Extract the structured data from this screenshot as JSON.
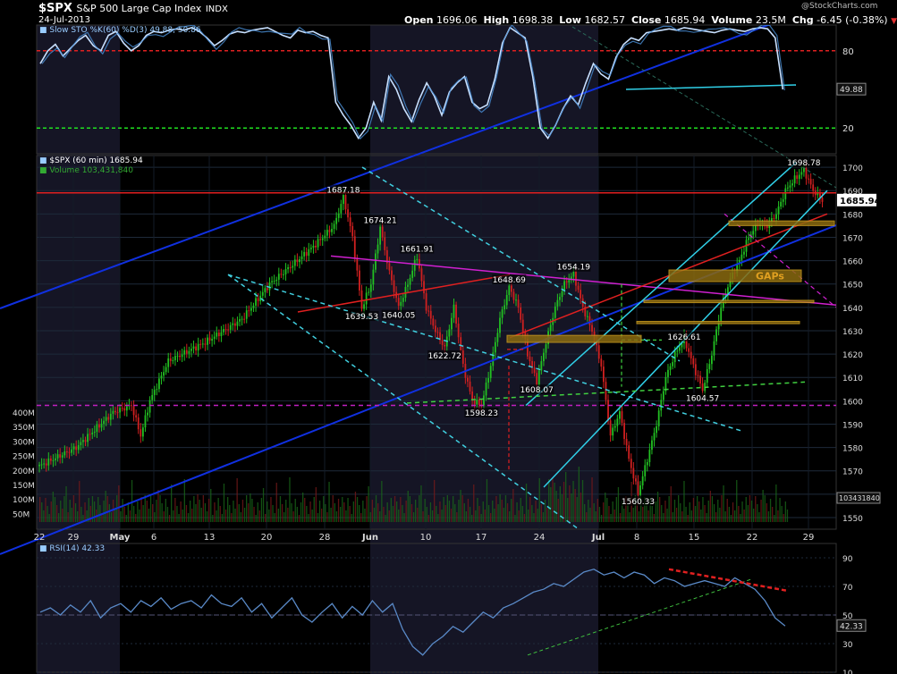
{
  "header": {
    "symbol": "$SPX",
    "name": "S&P 500 Large Cap Index",
    "exchange": "INDX",
    "date": "24-Jul-2013",
    "watermark": "@StockCharts.com",
    "ohlc": {
      "open_label": "Open",
      "open": "1696.06",
      "high_label": "High",
      "high": "1698.38",
      "low_label": "Low",
      "low": "1682.57",
      "close_label": "Close",
      "close": "1685.94",
      "volume_label": "Volume",
      "volume": "23.5M",
      "chg_label": "Chg",
      "chg": "-6.45 (-0.38%)",
      "chg_arrow": "▼"
    }
  },
  "chart_data": [
    {
      "type": "line",
      "panel": "stochastic",
      "legend": "Slow STO %K(60) %D(3) 49.88, 50.86",
      "ylim": [
        0,
        100
      ],
      "levels": [
        80,
        20
      ],
      "tick_labels": [
        "80",
        "20"
      ],
      "last_value": "49.88",
      "x": [
        0,
        6,
        12,
        18,
        24,
        30,
        36,
        42,
        48,
        54,
        60,
        66,
        72,
        78,
        84,
        90,
        96,
        102,
        108,
        114,
        120,
        126,
        132,
        138,
        144,
        150,
        156,
        162,
        168,
        174,
        180,
        186,
        192,
        198,
        204,
        210,
        216,
        222,
        228,
        234,
        240,
        246,
        252,
        258,
        264,
        270,
        276,
        282,
        288,
        294,
        300,
        306,
        312,
        318,
        324,
        330,
        336,
        342,
        348,
        354,
        360,
        366,
        372,
        378,
        384,
        390,
        396,
        402,
        408,
        414,
        420,
        426,
        432,
        438,
        444,
        450,
        456,
        462,
        468,
        474,
        480,
        486,
        492,
        498,
        504,
        510,
        516,
        522,
        528,
        534,
        540,
        546,
        552,
        558,
        564,
        570,
        576,
        582,
        588
      ],
      "values": [
        70,
        80,
        85,
        76,
        82,
        88,
        92,
        84,
        80,
        92,
        95,
        86,
        80,
        84,
        92,
        95,
        94,
        96,
        97,
        96,
        98,
        95,
        90,
        84,
        88,
        93,
        95,
        94,
        96,
        97,
        98,
        95,
        92,
        90,
        96,
        94,
        95,
        92,
        90,
        40,
        30,
        22,
        12,
        20,
        40,
        26,
        60,
        50,
        35,
        25,
        42,
        55,
        45,
        30,
        48,
        55,
        60,
        40,
        35,
        38,
        58,
        86,
        98,
        94,
        90,
        60,
        20,
        12,
        22,
        35,
        45,
        38,
        55,
        70,
        62,
        58,
        75,
        85,
        90,
        88,
        94,
        95,
        96,
        97,
        96,
        98,
        97,
        96,
        95,
        94,
        96,
        97,
        96,
        95,
        97,
        98,
        97,
        90,
        50
      ]
    },
    {
      "type": "line",
      "panel": "price",
      "legend": "$SPX (60 min) 1685.94",
      "volume_legend": "Volume 103,431,840",
      "ylim": [
        1545,
        1705
      ],
      "y_ticks": [
        1550,
        1560,
        1570,
        1580,
        1590,
        1600,
        1610,
        1620,
        1630,
        1640,
        1650,
        1660,
        1670,
        1680,
        1690,
        1700
      ],
      "x_labels": [
        "22",
        "29",
        "May",
        "6",
        "13",
        "20",
        "28",
        "Jun",
        "10",
        "17",
        "24",
        "Jul",
        "8",
        "15",
        "22",
        "29"
      ],
      "last_price": "1685.94",
      "last_volume": "103431840",
      "annotation_text": "GAPs",
      "points": [
        {
          "d": 0,
          "v": 1572
        },
        {
          "d": 4,
          "v": 1580
        },
        {
          "d": 8,
          "v": 1595
        },
        {
          "d": 10,
          "v": 1598
        },
        {
          "d": 11,
          "v": 1585
        },
        {
          "d": 12,
          "v": 1600
        },
        {
          "d": 14,
          "v": 1617
        },
        {
          "d": 18,
          "v": 1625
        },
        {
          "d": 22,
          "v": 1635
        },
        {
          "d": 25,
          "v": 1650
        },
        {
          "d": 28,
          "v": 1660
        },
        {
          "d": 30,
          "v": 1667
        },
        {
          "d": 32,
          "v": 1675
        },
        {
          "d": 33,
          "v": 1687.18
        },
        {
          "d": 34,
          "v": 1670
        },
        {
          "d": 35,
          "v": 1639.53
        },
        {
          "d": 36,
          "v": 1650
        },
        {
          "d": 37,
          "v": 1674.21
        },
        {
          "d": 38,
          "v": 1655
        },
        {
          "d": 39,
          "v": 1640.05
        },
        {
          "d": 40,
          "v": 1650
        },
        {
          "d": 41,
          "v": 1661.91
        },
        {
          "d": 42,
          "v": 1640
        },
        {
          "d": 43,
          "v": 1630
        },
        {
          "d": 44,
          "v": 1622.72
        },
        {
          "d": 45,
          "v": 1640
        },
        {
          "d": 46,
          "v": 1615
        },
        {
          "d": 47,
          "v": 1600
        },
        {
          "d": 48,
          "v": 1598.23
        },
        {
          "d": 49,
          "v": 1615
        },
        {
          "d": 50,
          "v": 1635
        },
        {
          "d": 51,
          "v": 1648.69
        },
        {
          "d": 52,
          "v": 1640
        },
        {
          "d": 53,
          "v": 1620
        },
        {
          "d": 54,
          "v": 1608.07
        },
        {
          "d": 55,
          "v": 1625
        },
        {
          "d": 56,
          "v": 1640
        },
        {
          "d": 57,
          "v": 1650
        },
        {
          "d": 58,
          "v": 1654.19
        },
        {
          "d": 59,
          "v": 1640
        },
        {
          "d": 60,
          "v": 1630
        },
        {
          "d": 61,
          "v": 1615
        },
        {
          "d": 62,
          "v": 1585
        },
        {
          "d": 63,
          "v": 1595
        },
        {
          "d": 64,
          "v": 1575
        },
        {
          "d": 65,
          "v": 1560.33
        },
        {
          "d": 66,
          "v": 1575
        },
        {
          "d": 67,
          "v": 1590
        },
        {
          "d": 68,
          "v": 1610
        },
        {
          "d": 69,
          "v": 1620
        },
        {
          "d": 70,
          "v": 1626.61
        },
        {
          "d": 71,
          "v": 1615
        },
        {
          "d": 72,
          "v": 1604.57
        },
        {
          "d": 73,
          "v": 1620
        },
        {
          "d": 74,
          "v": 1640
        },
        {
          "d": 75,
          "v": 1652
        },
        {
          "d": 76,
          "v": 1660
        },
        {
          "d": 77,
          "v": 1670
        },
        {
          "d": 78,
          "v": 1676
        },
        {
          "d": 79,
          "v": 1675
        },
        {
          "d": 80,
          "v": 1680
        },
        {
          "d": 81,
          "v": 1690
        },
        {
          "d": 82,
          "v": 1695
        },
        {
          "d": 83,
          "v": 1698.78
        },
        {
          "d": 84,
          "v": 1690
        },
        {
          "d": 85,
          "v": 1685.94
        }
      ],
      "labels": [
        {
          "text": "1687.18",
          "d": 33,
          "v": 1687.18
        },
        {
          "text": "1674.21",
          "d": 37,
          "v": 1674.21
        },
        {
          "text": "1661.91",
          "d": 41,
          "v": 1661.91
        },
        {
          "text": "1648.69",
          "d": 51,
          "v": 1648.69
        },
        {
          "text": "1654.19",
          "d": 58,
          "v": 1654.19
        },
        {
          "text": "1639.53",
          "d": 35,
          "v": 1639.53
        },
        {
          "text": "1640.05",
          "d": 39,
          "v": 1640.05
        },
        {
          "text": "1622.72",
          "d": 44,
          "v": 1622.72
        },
        {
          "text": "1598.23",
          "d": 48,
          "v": 1598.23
        },
        {
          "text": "1608.07",
          "d": 54,
          "v": 1608.07
        },
        {
          "text": "1560.33",
          "d": 65,
          "v": 1560.33
        },
        {
          "text": "1626.61",
          "d": 70,
          "v": 1626.61
        },
        {
          "text": "1604.57",
          "d": 72,
          "v": 1604.57
        },
        {
          "text": "1698.78",
          "d": 83,
          "v": 1698.78
        }
      ],
      "volume_ticks": [
        "400M",
        "350M",
        "300M",
        "250M",
        "200M",
        "150M",
        "100M",
        "50M"
      ]
    },
    {
      "type": "line",
      "panel": "rsi",
      "legend": "RSI(14) 42.33",
      "ylim": [
        10,
        100
      ],
      "y_ticks": [
        90,
        70,
        50,
        30,
        10
      ],
      "tick_labels": [
        "90",
        "70",
        "50",
        "30",
        "10"
      ],
      "last_value": "42.33",
      "x": [
        0,
        8,
        16,
        24,
        32,
        40,
        48,
        56,
        64,
        72,
        80,
        88,
        96,
        104,
        112,
        120,
        128,
        136,
        144,
        152,
        160,
        168,
        176,
        184,
        192,
        200,
        208,
        216,
        224,
        232,
        240,
        248,
        256,
        264,
        272,
        280,
        288,
        296,
        304,
        312,
        320,
        328,
        336,
        344,
        352,
        360,
        368,
        376,
        384,
        392,
        400,
        408,
        416,
        424,
        432,
        440,
        448,
        456,
        464,
        472,
        480,
        488,
        496,
        504,
        512,
        520,
        528,
        536,
        544,
        552,
        560,
        568,
        576,
        584,
        592
      ],
      "values": [
        52,
        55,
        50,
        57,
        52,
        60,
        48,
        55,
        58,
        52,
        60,
        56,
        62,
        54,
        58,
        60,
        55,
        64,
        58,
        56,
        62,
        52,
        58,
        48,
        55,
        62,
        50,
        45,
        52,
        58,
        48,
        56,
        50,
        60,
        52,
        58,
        40,
        28,
        22,
        30,
        35,
        42,
        38,
        45,
        52,
        48,
        55,
        58,
        62,
        66,
        68,
        72,
        70,
        75,
        80,
        82,
        78,
        80,
        76,
        80,
        78,
        72,
        76,
        74,
        70,
        72,
        74,
        72,
        70,
        76,
        72,
        68,
        60,
        48,
        42.33
      ]
    }
  ]
}
